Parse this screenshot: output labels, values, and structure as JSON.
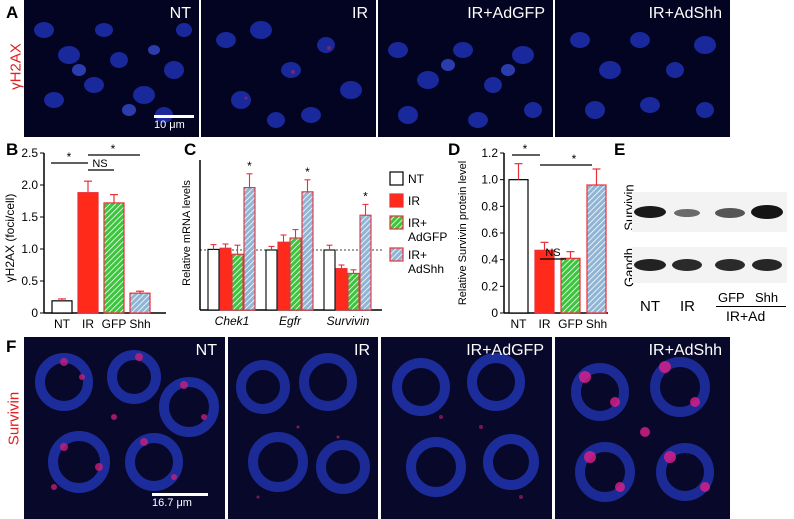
{
  "panelA": {
    "letter": "A",
    "row_label": "γH2AX",
    "tiles": [
      "NT",
      "IR",
      "IR+AdGFP",
      "IR+AdShh"
    ],
    "scale": "10 μm"
  },
  "panelB": {
    "letter": "B",
    "sig": [
      "*",
      "NS",
      "*"
    ]
  },
  "panelC": {
    "letter": "C",
    "sig": [
      "*",
      "*",
      "*"
    ]
  },
  "panelD": {
    "letter": "D",
    "sig": [
      "*",
      "NS",
      "*"
    ]
  },
  "panelE": {
    "letter": "E",
    "rows": [
      "Survivin",
      "Gapdh"
    ],
    "lanes": [
      "NT",
      "IR",
      "GFP",
      "Shh"
    ],
    "group": "IR+Ad"
  },
  "panelF": {
    "letter": "F",
    "row_label": "Survivin",
    "tiles": [
      "NT",
      "IR",
      "IR+AdGFP",
      "IR+AdShh"
    ],
    "scale": "16.7 μm"
  },
  "colors": {
    "NT": "#ffffff",
    "IR": "#ff2a1a",
    "GFP": "#3cc43c",
    "Shh": "#8fb4d4",
    "error": "#e8303a",
    "label_red": "#e02020"
  },
  "chart_data": [
    {
      "type": "bar",
      "panel": "B",
      "ylabel": "γH2AX (foci/cell)",
      "categories": [
        "NT",
        "IR",
        "GFP",
        "Shh"
      ],
      "values": [
        0.19,
        1.88,
        1.72,
        0.31
      ],
      "errors": [
        0.03,
        0.18,
        0.13,
        0.03
      ],
      "ylim": [
        0,
        2.5
      ],
      "yticks": [
        "0",
        "0.5",
        "1.0",
        "1.5",
        "2.0",
        "2.5"
      ]
    },
    {
      "type": "bar",
      "panel": "C",
      "ylabel": "Relative mRNA levels",
      "groups": [
        "Chek1",
        "Egfr",
        "Survivin"
      ],
      "series": [
        {
          "name": "NT",
          "values": [
            1.01,
            1.0,
            1.0
          ],
          "errors": [
            0.08,
            0.06,
            0.08
          ]
        },
        {
          "name": "IR",
          "values": [
            1.03,
            1.13,
            0.69
          ],
          "errors": [
            0.07,
            0.12,
            0.06
          ]
        },
        {
          "name": "IR+ AdGFP",
          "values": [
            0.93,
            1.2,
            0.61
          ],
          "errors": [
            0.15,
            0.14,
            0.06
          ]
        },
        {
          "name": "IR+ AdShh",
          "values": [
            2.04,
            1.97,
            1.58
          ],
          "errors": [
            0.23,
            0.2,
            0.18
          ]
        }
      ],
      "ylim": [
        0,
        2.5
      ],
      "reference_line": 1.0
    },
    {
      "type": "bar",
      "panel": "D",
      "ylabel": "Relative Survivin protein level",
      "categories": [
        "NT",
        "IR",
        "GFP",
        "Shh"
      ],
      "values": [
        1.0,
        0.47,
        0.41,
        0.96
      ],
      "errors": [
        0.12,
        0.06,
        0.05,
        0.12
      ],
      "ylim": [
        0,
        1.2
      ],
      "yticks": [
        "0",
        "0.2",
        "0.4",
        "0.6",
        "0.8",
        "1.0",
        "1.2"
      ]
    }
  ]
}
